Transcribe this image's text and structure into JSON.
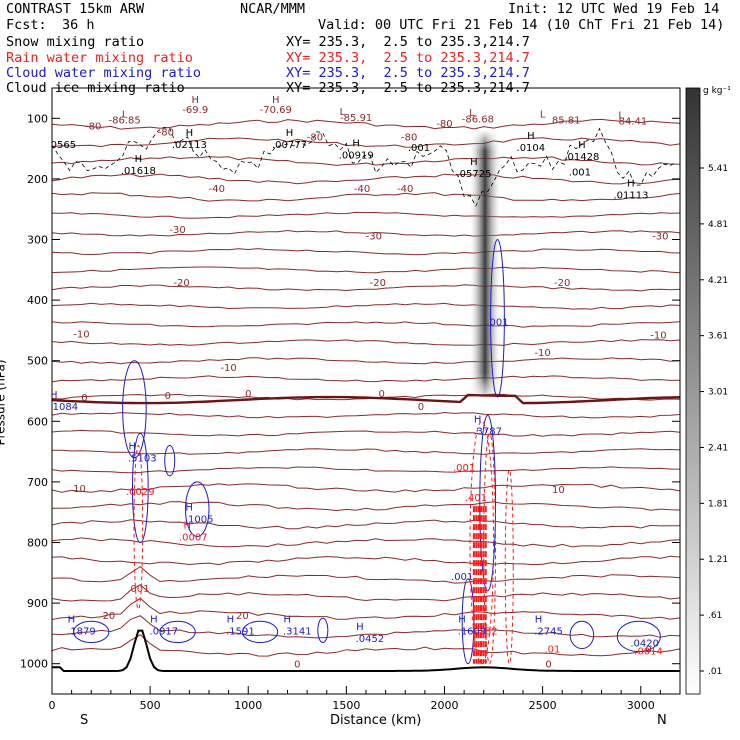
{
  "header": {
    "model": "CONTRAST 15km ARW",
    "org": "NCAR/MMM",
    "init": "Init: 12 UTC Wed 19 Feb 14",
    "fcst_label": "Fcst:",
    "fcst_value": "36 h",
    "valid": "Valid: 00 UTC Fri 21 Feb 14 (10 ChT Fri 21 Feb 14)",
    "fields": [
      {
        "name": "Snow mixing ratio",
        "xy": "XY= 235.3,  2.5 to 235.3,214.7",
        "color": "#000000"
      },
      {
        "name": "Rain water mixing ratio",
        "xy": "XY= 235.3,  2.5 to 235.3,214.7",
        "color": "#ff1a1a"
      },
      {
        "name": "Cloud water mixing ratio",
        "xy": "XY= 235.3,  2.5 to 235.3,214.7",
        "color": "#1a1acc"
      },
      {
        "name": "Cloud ice mixing ratio",
        "xy": "XY= 235.3,  2.5 to 235.3,214.7",
        "color": "#000000"
      }
    ]
  },
  "chart_data": {
    "type": "cross-section",
    "xlabel": "Distance (km)",
    "ylabel": "Pressure (hPa)",
    "x_ticks": [
      0,
      500,
      1000,
      1500,
      2000,
      2500,
      3000
    ],
    "xlim": [
      0,
      3200
    ],
    "y_ticks": [
      100,
      200,
      300,
      400,
      500,
      600,
      700,
      800,
      900,
      1000
    ],
    "ylim": [
      50,
      1050
    ],
    "x_end_labels": {
      "left": "S",
      "right": "N"
    },
    "colorbar": {
      "unit": "g kg⁻¹",
      "ticks": [
        "5.41",
        "4.81",
        "4.21",
        "3.61",
        "3.01",
        "2.41",
        "1.81",
        "1.21",
        ".61",
        ".01"
      ]
    },
    "temperature_labels": [
      {
        "text": "-80",
        "x": 210,
        "p": 112
      },
      {
        "text": "-80",
        "x": 580,
        "p": 122
      },
      {
        "text": "-80",
        "x": 1340,
        "p": 130
      },
      {
        "text": "-80",
        "x": 1820,
        "p": 130
      },
      {
        "text": "-80",
        "x": 2000,
        "p": 108
      },
      {
        "text": "-40",
        "x": 840,
        "p": 215
      },
      {
        "text": "-40",
        "x": 1580,
        "p": 215
      },
      {
        "text": "-40",
        "x": 1800,
        "p": 215
      },
      {
        "text": "-30",
        "x": 640,
        "p": 283
      },
      {
        "text": "-30",
        "x": 1640,
        "p": 293
      },
      {
        "text": "-30",
        "x": 3100,
        "p": 293
      },
      {
        "text": "-20",
        "x": 660,
        "p": 370
      },
      {
        "text": "-20",
        "x": 1660,
        "p": 370
      },
      {
        "text": "-20",
        "x": 2600,
        "p": 370
      },
      {
        "text": "-10",
        "x": 150,
        "p": 455
      },
      {
        "text": "-10",
        "x": 900,
        "p": 510
      },
      {
        "text": "-10",
        "x": 3090,
        "p": 457
      },
      {
        "text": "-10",
        "x": 2500,
        "p": 486
      },
      {
        "text": "0",
        "x": 165,
        "p": 560
      },
      {
        "text": "0",
        "x": 590,
        "p": 557
      },
      {
        "text": "0",
        "x": 1000,
        "p": 553
      },
      {
        "text": "0",
        "x": 1680,
        "p": 553
      },
      {
        "text": "0",
        "x": 1880,
        "p": 575
      },
      {
        "text": "10",
        "x": 140,
        "p": 710
      },
      {
        "text": "10",
        "x": 2580,
        "p": 712
      },
      {
        "text": "20",
        "x": 290,
        "p": 920
      },
      {
        "text": "20",
        "x": 970,
        "p": 920
      },
      {
        "text": "0",
        "x": 1250,
        "p": 1000
      },
      {
        "text": "0",
        "x": 2530,
        "p": 1000
      },
      {
        "text": "0",
        "x": 3040,
        "p": 975
      }
    ],
    "snow_labels": [
      {
        "kind": "L",
        "text": "-86.85",
        "x": 370,
        "p": 102,
        "lx": 370,
        "lp": 92
      },
      {
        "kind": "H",
        "text": "-69.9",
        "x": 730,
        "p": 85,
        "lx": 0,
        "lp": 0
      },
      {
        "kind": "H",
        "text": "-70.69",
        "x": 1140,
        "p": 85,
        "lx": 0,
        "lp": 0
      },
      {
        "kind": "L",
        "text": "-85.91",
        "x": 1550,
        "p": 98,
        "lx": 1480,
        "lp": 88
      },
      {
        "kind": "L",
        "text": "-86.68",
        "x": 2170,
        "p": 100,
        "lx": 2140,
        "lp": 90
      },
      {
        "kind": "L",
        "text": "85.81",
        "x": 2620,
        "p": 102,
        "lx": 2500,
        "lp": 92
      },
      {
        "kind": "L",
        "text": "84.41",
        "x": 2960,
        "p": 104,
        "lx": 2900,
        "lp": 94
      }
    ],
    "ice_labels": [
      {
        "text": ".0565",
        "x": 50,
        "p": 142,
        "h": false
      },
      {
        "text": ".01618",
        "x": 440,
        "p": 185,
        "h": true
      },
      {
        "text": ".02113",
        "x": 700,
        "p": 142,
        "h": true
      },
      {
        "text": ".00777",
        "x": 1210,
        "p": 142,
        "h": true
      },
      {
        "text": ".00919",
        "x": 1550,
        "p": 160,
        "h": true
      },
      {
        "text": ".001",
        "x": 1870,
        "p": 147,
        "h": false
      },
      {
        "text": ".05725",
        "x": 2150,
        "p": 190,
        "h": true
      },
      {
        "text": ".0104",
        "x": 2440,
        "p": 147,
        "h": true
      },
      {
        "text": ".01428",
        "x": 2700,
        "p": 162,
        "h": true
      },
      {
        "text": ".001",
        "x": 2690,
        "p": 188,
        "h": false
      },
      {
        "text": ".01113",
        "x": 2950,
        "p": 226,
        "h": true
      }
    ],
    "cloud_water_labels": [
      {
        "text": ".1084",
        "x": 60,
        "p": 575,
        "h": true
      },
      {
        "text": ".5103",
        "x": 460,
        "p": 660,
        "h": true
      },
      {
        "text": ".1005",
        "x": 750,
        "p": 760,
        "h": true
      },
      {
        "text": ".1879",
        "x": 150,
        "p": 945,
        "h": true
      },
      {
        "text": ".0917",
        "x": 570,
        "p": 945,
        "h": true
      },
      {
        "text": ".1591",
        "x": 960,
        "p": 945,
        "h": true
      },
      {
        "text": ".3141",
        "x": 1250,
        "p": 945,
        "h": true
      },
      {
        "text": ".0452",
        "x": 1620,
        "p": 958,
        "h": true
      },
      {
        "text": ".001",
        "x": 2090,
        "p": 855,
        "h": false
      },
      {
        "text": ".1609",
        "x": 2140,
        "p": 945,
        "h": true
      },
      {
        "text": ".3787",
        "x": 2220,
        "p": 615,
        "h": true
      },
      {
        "text": ".001",
        "x": 2270,
        "p": 435,
        "h": false
      },
      {
        "text": ".2745",
        "x": 2530,
        "p": 945,
        "h": true
      },
      {
        "text": ".0420",
        "x": 3020,
        "p": 965,
        "h": false
      }
    ],
    "rain_labels": [
      {
        "text": ".0029",
        "x": 450,
        "p": 715,
        "h": false
      },
      {
        "text": ".0007",
        "x": 720,
        "p": 790,
        "h": true
      },
      {
        "text": ".001",
        "x": 440,
        "p": 875,
        "h": false
      },
      {
        "text": ".001",
        "x": 2100,
        "p": 675,
        "h": false
      },
      {
        "text": ".401",
        "x": 2160,
        "p": 725,
        "h": false
      },
      {
        "text": ".82",
        "x": 2230,
        "p": 945,
        "h": false
      },
      {
        "text": ".01",
        "x": 2550,
        "p": 975,
        "h": false
      },
      {
        "text": ".0014",
        "x": 3040,
        "p": 978,
        "h": false
      }
    ]
  }
}
